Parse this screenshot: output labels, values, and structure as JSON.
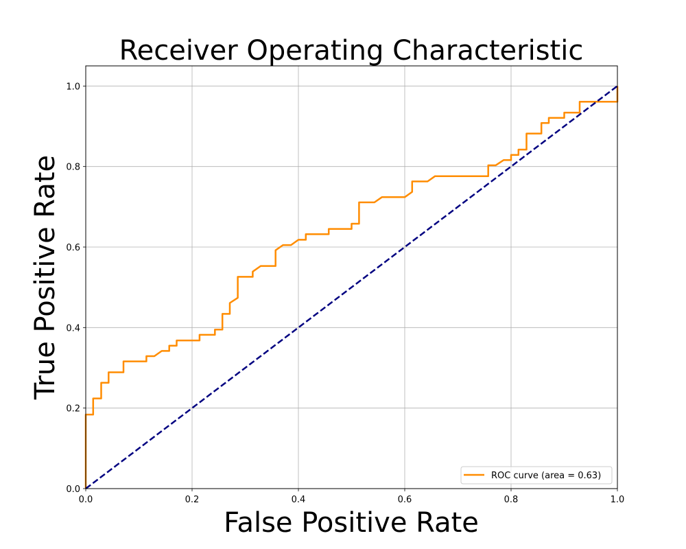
{
  "chart_data": {
    "type": "line",
    "title": "Receiver Operating Characteristic",
    "xlabel": "False Positive Rate",
    "ylabel": "True Positive Rate",
    "xlim": [
      0.0,
      1.0
    ],
    "ylim": [
      0.0,
      1.05
    ],
    "xticks": [
      "0.0",
      "0.2",
      "0.4",
      "0.6",
      "0.8",
      "1.0"
    ],
    "yticks": [
      "0.0",
      "0.2",
      "0.4",
      "0.6",
      "0.8",
      "1.0"
    ],
    "grid": true,
    "legend_position": "lower-right",
    "series": [
      {
        "name": "ROC curve (area = 0.63)",
        "color": "#ff8c00",
        "style": "solid",
        "x": [
          0.0,
          0.0,
          0.014,
          0.014,
          0.029,
          0.029,
          0.043,
          0.043,
          0.071,
          0.071,
          0.114,
          0.114,
          0.129,
          0.143,
          0.157,
          0.157,
          0.171,
          0.171,
          0.214,
          0.214,
          0.243,
          0.243,
          0.257,
          0.257,
          0.271,
          0.271,
          0.286,
          0.286,
          0.314,
          0.314,
          0.329,
          0.357,
          0.357,
          0.371,
          0.386,
          0.4,
          0.414,
          0.414,
          0.457,
          0.457,
          0.5,
          0.5,
          0.514,
          0.514,
          0.543,
          0.557,
          0.6,
          0.614,
          0.614,
          0.643,
          0.657,
          0.757,
          0.757,
          0.771,
          0.786,
          0.8,
          0.8,
          0.814,
          0.814,
          0.829,
          0.829,
          0.857,
          0.857,
          0.871,
          0.871,
          0.9,
          0.9,
          0.929,
          0.929,
          1.0,
          1.0
        ],
        "y": [
          0.0,
          0.184,
          0.184,
          0.224,
          0.224,
          0.263,
          0.263,
          0.289,
          0.289,
          0.316,
          0.316,
          0.329,
          0.329,
          0.342,
          0.342,
          0.355,
          0.355,
          0.368,
          0.368,
          0.382,
          0.382,
          0.395,
          0.395,
          0.434,
          0.434,
          0.461,
          0.474,
          0.526,
          0.526,
          0.539,
          0.553,
          0.553,
          0.592,
          0.605,
          0.605,
          0.618,
          0.618,
          0.632,
          0.632,
          0.645,
          0.645,
          0.658,
          0.658,
          0.711,
          0.711,
          0.724,
          0.724,
          0.737,
          0.763,
          0.763,
          0.776,
          0.776,
          0.803,
          0.803,
          0.816,
          0.816,
          0.829,
          0.829,
          0.842,
          0.842,
          0.882,
          0.882,
          0.908,
          0.908,
          0.921,
          0.921,
          0.934,
          0.934,
          0.961,
          0.961,
          1.0
        ]
      },
      {
        "name": "",
        "color": "#000080",
        "style": "dashed",
        "x": [
          0.0,
          1.0
        ],
        "y": [
          0.0,
          1.0
        ]
      }
    ]
  }
}
